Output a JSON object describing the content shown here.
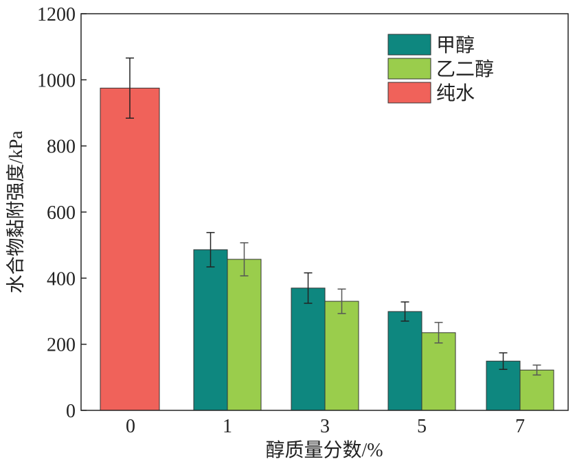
{
  "chart_data": {
    "type": "bar",
    "title": "",
    "xlabel": "醇质量分数/%",
    "ylabel": "水合物黏附强度/kPa",
    "ylim": [
      0,
      1200
    ],
    "yticks": [
      0,
      200,
      400,
      600,
      800,
      1000,
      1200
    ],
    "categories": [
      "0",
      "1",
      "3",
      "5",
      "7"
    ],
    "legend_position": "top-right",
    "series": [
      {
        "name": "甲醇",
        "color": "#0e877f",
        "values": [
          null,
          486,
          370,
          299,
          149
        ],
        "errors": [
          null,
          52,
          46,
          29,
          25
        ]
      },
      {
        "name": "乙二醇",
        "color": "#9acd4c",
        "values": [
          null,
          457,
          330,
          235,
          122
        ],
        "errors": [
          null,
          50,
          37,
          31,
          15
        ]
      },
      {
        "name": "纯水",
        "color": "#f0625a",
        "values": [
          975,
          null,
          null,
          null,
          null
        ],
        "errors": [
          91,
          null,
          null,
          null,
          null
        ]
      }
    ]
  }
}
